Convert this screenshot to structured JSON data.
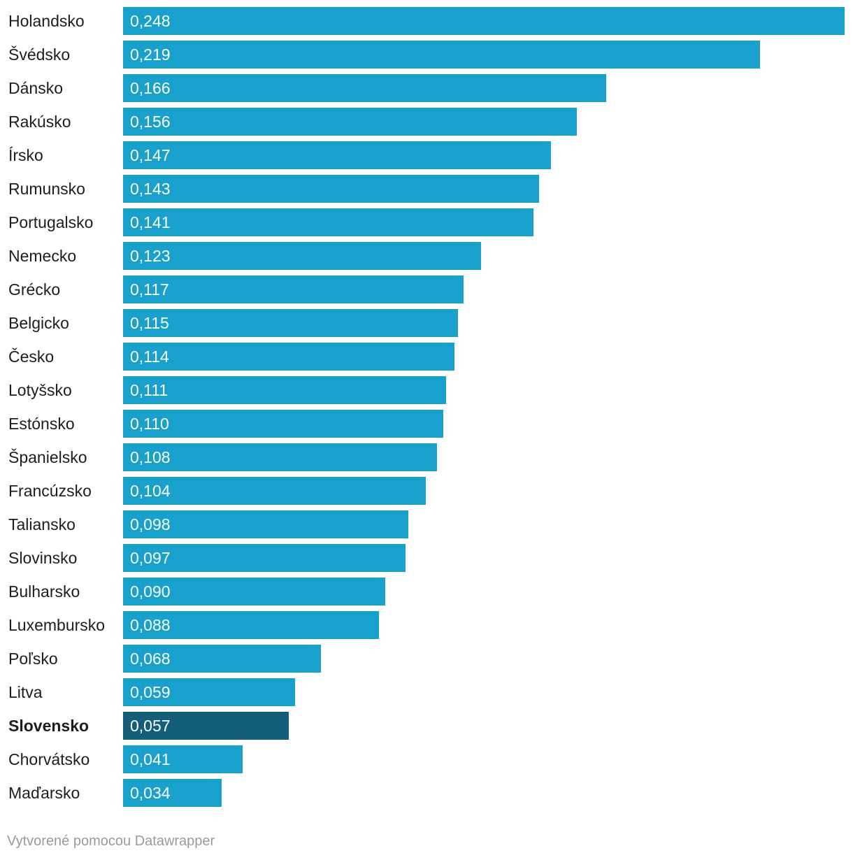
{
  "chart_data": {
    "type": "bar",
    "orientation": "horizontal",
    "categories": [
      "Holandsko",
      "Švédsko",
      "Dánsko",
      "Rakúsko",
      "Írsko",
      "Rumunsko",
      "Portugalsko",
      "Nemecko",
      "Grécko",
      "Belgicko",
      "Česko",
      "Lotyšsko",
      "Estónsko",
      "Španielsko",
      "Francúzsko",
      "Taliansko",
      "Slovinsko",
      "Bulharsko",
      "Luxembursko",
      "Poľsko",
      "Litva",
      "Slovensko",
      "Chorvátsko",
      "Maďarsko"
    ],
    "values": [
      0.248,
      0.219,
      0.166,
      0.156,
      0.147,
      0.143,
      0.141,
      0.123,
      0.117,
      0.115,
      0.114,
      0.111,
      0.11,
      0.108,
      0.104,
      0.098,
      0.097,
      0.09,
      0.088,
      0.068,
      0.059,
      0.057,
      0.041,
      0.034
    ],
    "value_labels": [
      "0,248",
      "0,219",
      "0,166",
      "0,156",
      "0,147",
      "0,143",
      "0,141",
      "0,123",
      "0,117",
      "0,115",
      "0,114",
      "0,111",
      "0,110",
      "0,108",
      "0,104",
      "0,098",
      "0,097",
      "0,090",
      "0,088",
      "0,068",
      "0,059",
      "0,057",
      "0,041",
      "0,034"
    ],
    "highlight": "Slovensko",
    "colors": {
      "bar": "#18a1cd",
      "highlight": "#135f79"
    },
    "xlim": [
      0,
      0.248
    ],
    "title": "",
    "xlabel": "",
    "ylabel": ""
  },
  "footer": {
    "credit": "Vytvorené pomocou Datawrapper"
  }
}
